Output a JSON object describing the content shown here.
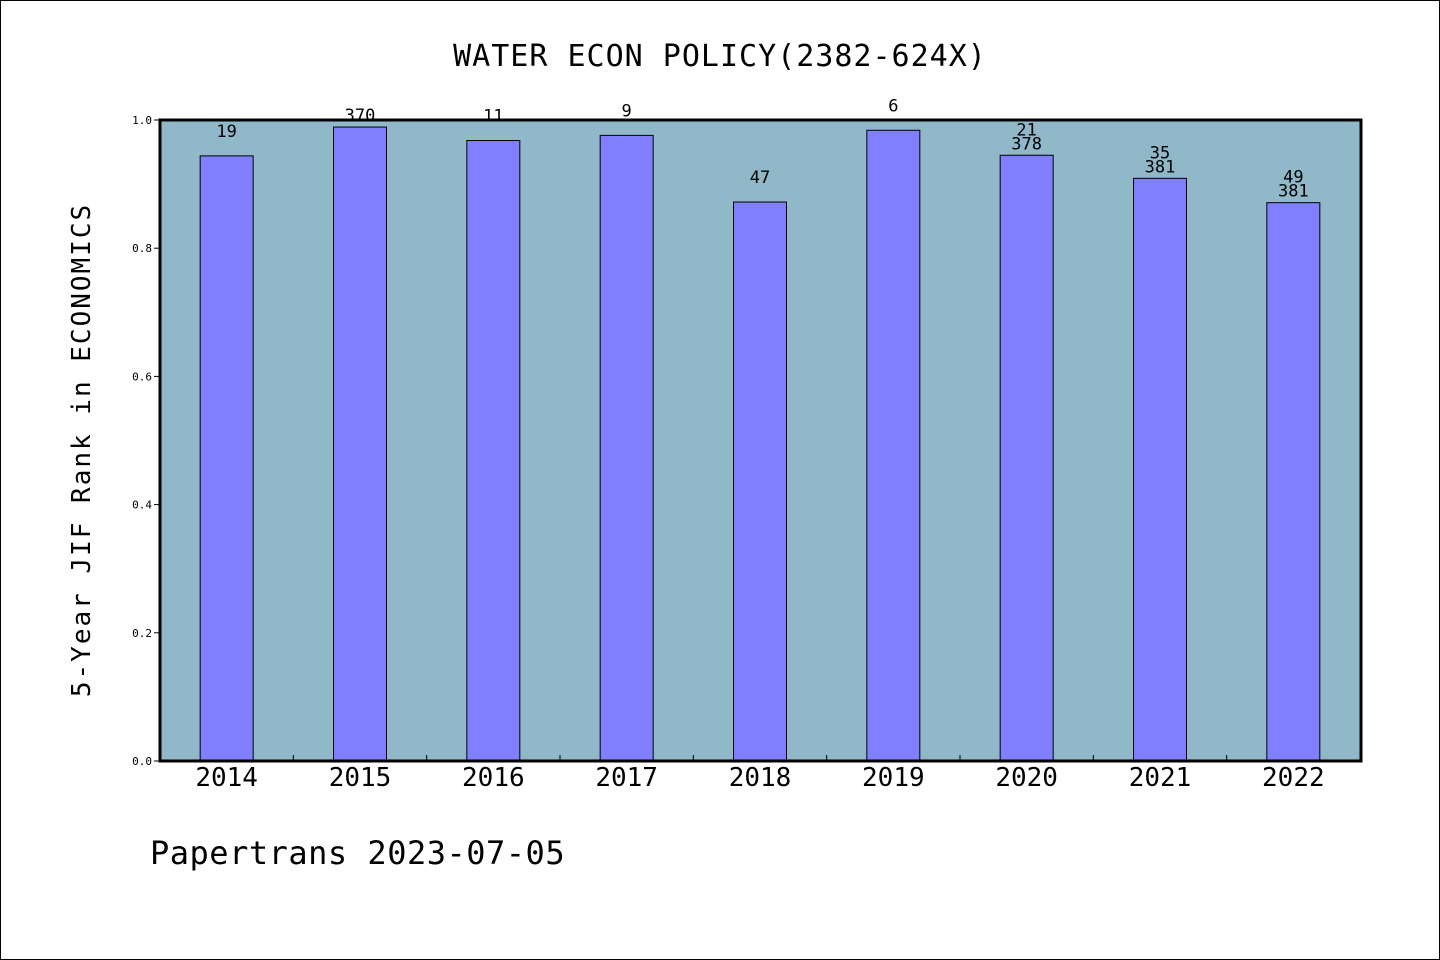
{
  "chart_data": {
    "type": "bar",
    "title": "WATER ECON POLICY(2382-624X)",
    "ylabel": "5-Year JIF Rank in ECONOMICS",
    "xlabel": "",
    "ylim": [
      0.0,
      1.0
    ],
    "yticks": [
      "0.0",
      "0.2",
      "0.4",
      "0.6",
      "0.8",
      "1.0"
    ],
    "categories": [
      "2014",
      "2015",
      "2016",
      "2017",
      "2018",
      "2019",
      "2020",
      "2021",
      "2022"
    ],
    "values": [
      0.944,
      0.989,
      0.968,
      0.976,
      0.872,
      0.984,
      0.945,
      0.909,
      0.871
    ],
    "rank": [
      "19",
      "",
      "11",
      "9",
      "47",
      "6",
      "21",
      "35",
      "49"
    ],
    "total": [
      "",
      "370",
      "",
      "",
      "",
      "",
      "378",
      "381",
      "381"
    ],
    "grid": false,
    "colors": {
      "bar": "#8080ff",
      "plot_background": "#90b8c8",
      "border": "#000000"
    }
  },
  "footer": "Papertrans 2023-07-05"
}
